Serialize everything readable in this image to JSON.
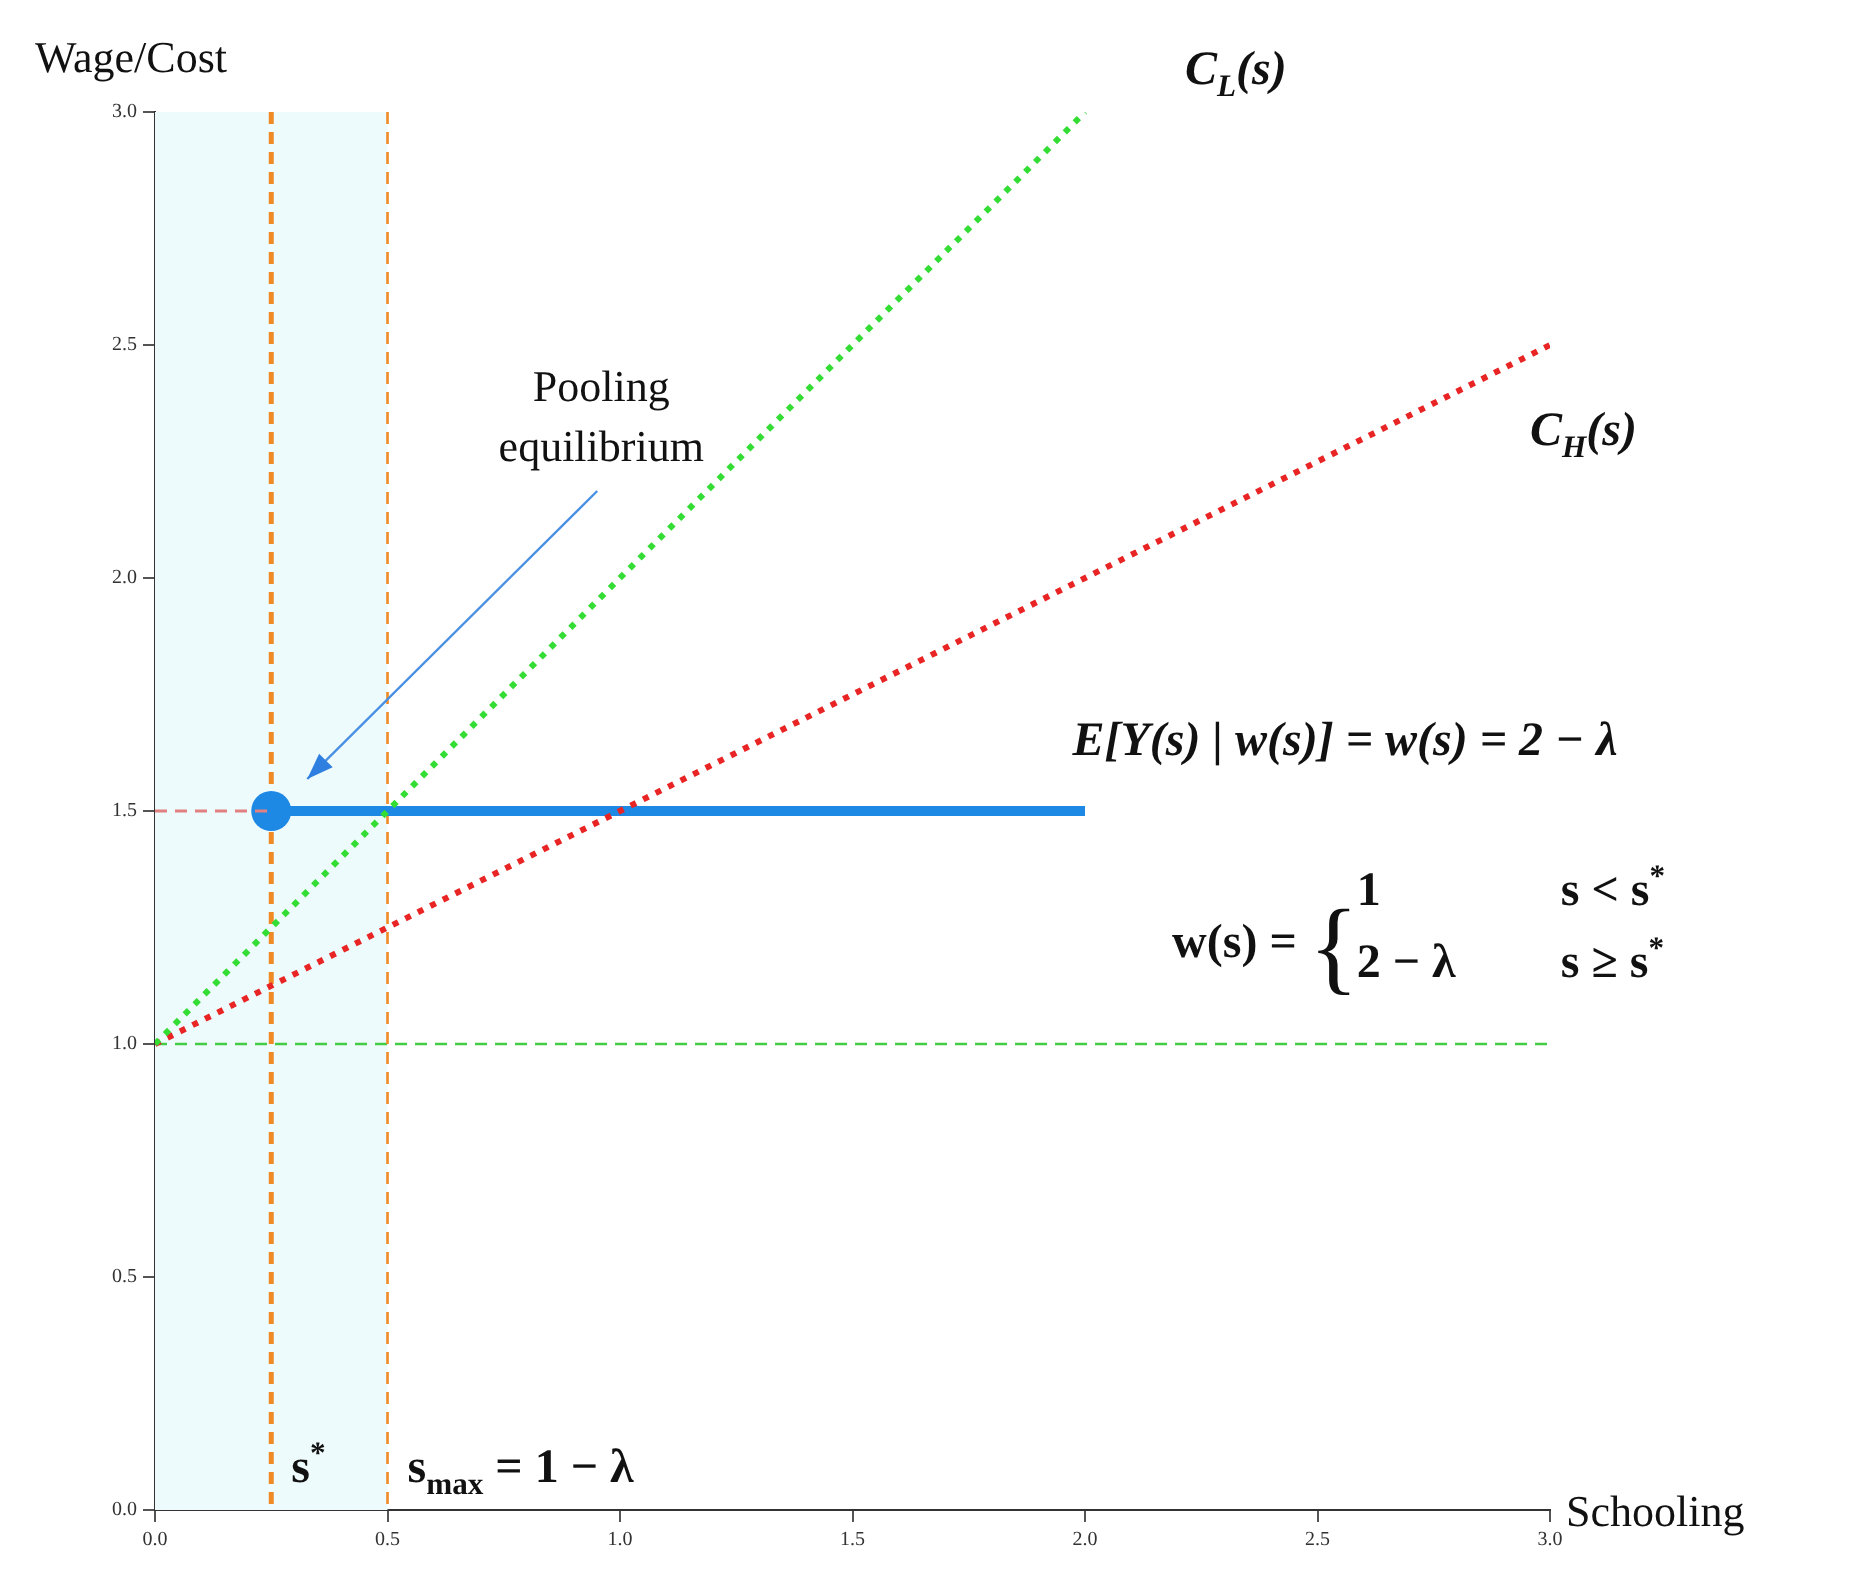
{
  "chart_data": {
    "type": "line",
    "xlabel": "Schooling",
    "ylabel": "Wage/Cost",
    "xlim": [
      0,
      3
    ],
    "ylim": [
      0,
      3
    ],
    "xticks": [
      {
        "value": 0,
        "label": "0.0"
      },
      {
        "value": 0.5,
        "label": "0.5"
      },
      {
        "value": 1,
        "label": "1.0"
      },
      {
        "value": 1.5,
        "label": "1.5"
      },
      {
        "value": 2,
        "label": "2.0"
      },
      {
        "value": 2.5,
        "label": "2.5"
      },
      {
        "value": 3,
        "label": "3.0"
      }
    ],
    "yticks": [
      {
        "value": 0,
        "label": "0.0"
      },
      {
        "value": 0.5,
        "label": "0.5"
      },
      {
        "value": 1,
        "label": "1.0"
      },
      {
        "value": 1.5,
        "label": "1.5"
      },
      {
        "value": 2,
        "label": "2.0"
      },
      {
        "value": 2.5,
        "label": "2.5"
      },
      {
        "value": 3,
        "label": "3.0"
      }
    ],
    "grid": false,
    "legend": false,
    "series": [
      {
        "name": "C$_{L}$(s)",
        "color": "#33dd33",
        "x": [
          0,
          2
        ],
        "values": [
          1,
          3
        ],
        "line_style": "dotted",
        "marker": "none"
      },
      {
        "name": "C$_{H}$(s)",
        "color": "#e82424",
        "x": [
          0,
          3
        ],
        "values": [
          1,
          2.5
        ],
        "line_style": "dotted",
        "marker": "none"
      },
      {
        "name": "E[Y(s) | w(s)] = w(s) = 2 − λ",
        "color": "#1e88e5",
        "x": [
          0.25,
          2
        ],
        "values": [
          1.5,
          1.5
        ],
        "line_style": "solid",
        "marker": "none"
      },
      {
        "color": "#e08080",
        "x": [
          0,
          0.25
        ],
        "values": [
          1.5,
          1.5
        ],
        "line_style": "dashed",
        "marker": "none"
      },
      {
        "color": "#1e88e5",
        "x": [
          0.25
        ],
        "values": [
          1.5
        ],
        "line_style": "solid",
        "marker": "circle"
      }
    ],
    "ref_lines": [
      {
        "axis": "y",
        "value": 1,
        "color": "#44cc44",
        "line_style": "dashed"
      },
      {
        "axis": "x",
        "value": 0.25,
        "label": "s$^{*}$",
        "color": "#f08a24",
        "line_style": "dashed"
      },
      {
        "axis": "x",
        "value": 0.5,
        "label": "s$_{max}$ = 1 − λ",
        "color": "#f08a24",
        "line_style": "dashed"
      }
    ],
    "bands": [
      {
        "axis": "x",
        "from": 0,
        "to": 0.5,
        "color": "#eefbfc"
      }
    ],
    "annotations": [
      "Pooling equilibrium",
      "w(s) =",
      "{",
      "1",
      "s < s$^{*}$",
      "2 − λ",
      "s ≥ s$^{*}$"
    ]
  }
}
